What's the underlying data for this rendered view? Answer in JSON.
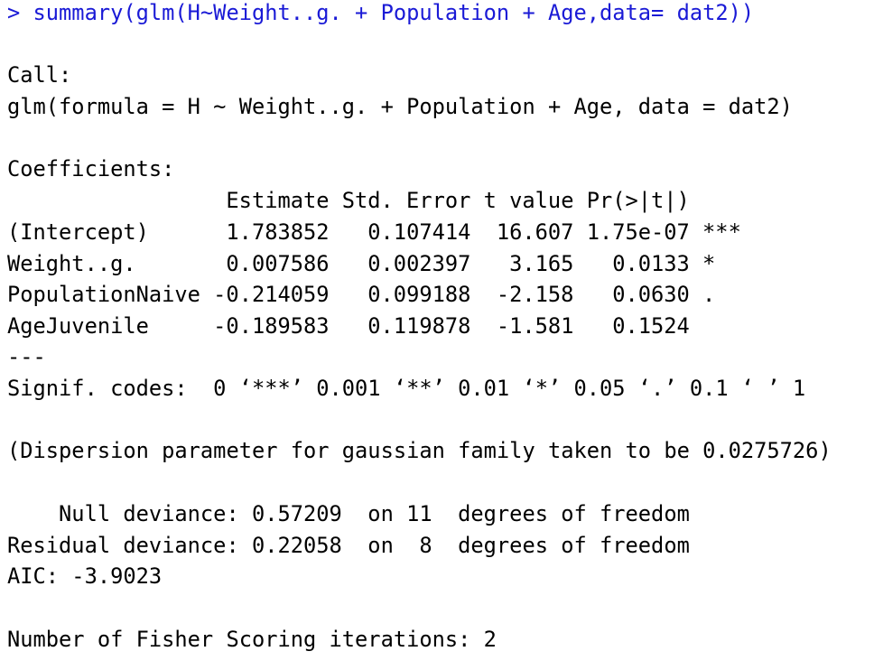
{
  "command": "> summary(glm(H~Weight..g. + Population + Age,data= dat2))",
  "call_label": "Call:",
  "call": "glm(formula = H ~ Weight..g. + Population + Age, data = dat2)",
  "coefficients_label": "Coefficients:",
  "table": {
    "header": [
      "Estimate",
      "Std. Error",
      "t value",
      "Pr(>|t|)"
    ],
    "rows": [
      [
        "(Intercept)",
        "1.783852",
        "0.107414",
        "16.607",
        "1.75e-07",
        "***"
      ],
      [
        "Weight..g.",
        "0.007586",
        "0.002397",
        "3.165",
        "0.0133",
        "*"
      ],
      [
        "PopulationNaive",
        "-0.214059",
        "0.099188",
        "-2.158",
        "0.0630",
        "."
      ],
      [
        "AgeJuvenile",
        "-0.189583",
        "0.119878",
        "-1.581",
        "0.1524"
      ]
    ]
  },
  "separator": "---",
  "signif_codes": "Signif. codes:  0 ‘***’ 0.001 ‘**’ 0.01 ‘*’ 0.05 ‘.’ 0.1 ‘ ’ 1",
  "dispersion": "(Dispersion parameter for gaussian family taken to be 0.0275726)",
  "null_deviance": "    Null deviance: 0.57209  on 11  degrees of freedom",
  "residual_deviance": "Residual deviance: 0.22058  on  8  degrees of freedom",
  "aic": "AIC: -3.9023",
  "iterations": "Number of Fisher Scoring iterations: 2"
}
